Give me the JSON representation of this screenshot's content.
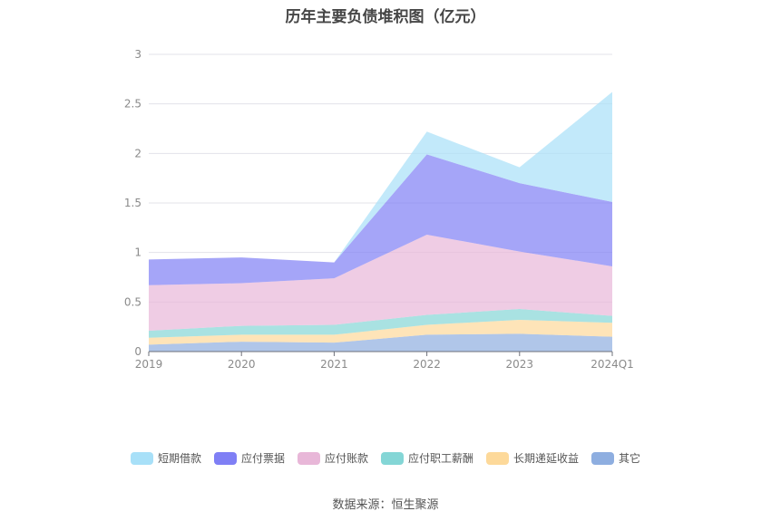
{
  "chart_data": {
    "type": "area",
    "stacked": true,
    "title": "历年主要负债堆积图（亿元）",
    "categories": [
      "2019",
      "2020",
      "2021",
      "2022",
      "2023",
      "2024Q1"
    ],
    "ylim": [
      0,
      3
    ],
    "yticks": [
      "0",
      "0.5",
      "1",
      "1.5",
      "2",
      "2.5",
      "3"
    ],
    "grid": true,
    "legend_position": "bottom",
    "series": [
      {
        "name": "其它",
        "color": "#8eaee0",
        "values": [
          0.07,
          0.1,
          0.09,
          0.17,
          0.18,
          0.15
        ]
      },
      {
        "name": "长期递延收益",
        "color": "#fdd99a",
        "values": [
          0.07,
          0.07,
          0.08,
          0.1,
          0.14,
          0.14
        ]
      },
      {
        "name": "应付职工薪酬",
        "color": "#84d6d6",
        "values": [
          0.07,
          0.09,
          0.1,
          0.1,
          0.11,
          0.07
        ]
      },
      {
        "name": "应付账款",
        "color": "#e8b7d8",
        "values": [
          0.46,
          0.43,
          0.47,
          0.81,
          0.58,
          0.5
        ]
      },
      {
        "name": "应付票据",
        "color": "#7f7ff5",
        "values": [
          0.26,
          0.26,
          0.16,
          0.81,
          0.69,
          0.65
        ]
      },
      {
        "name": "短期借款",
        "color": "#a8e0f8",
        "values": [
          0.0,
          0.0,
          0.0,
          0.23,
          0.16,
          1.11
        ]
      }
    ]
  },
  "legend_order": [
    "短期借款",
    "应付票据",
    "应付账款",
    "应付职工薪酬",
    "长期递延收益",
    "其它"
  ],
  "source": "数据来源：恒生聚源"
}
